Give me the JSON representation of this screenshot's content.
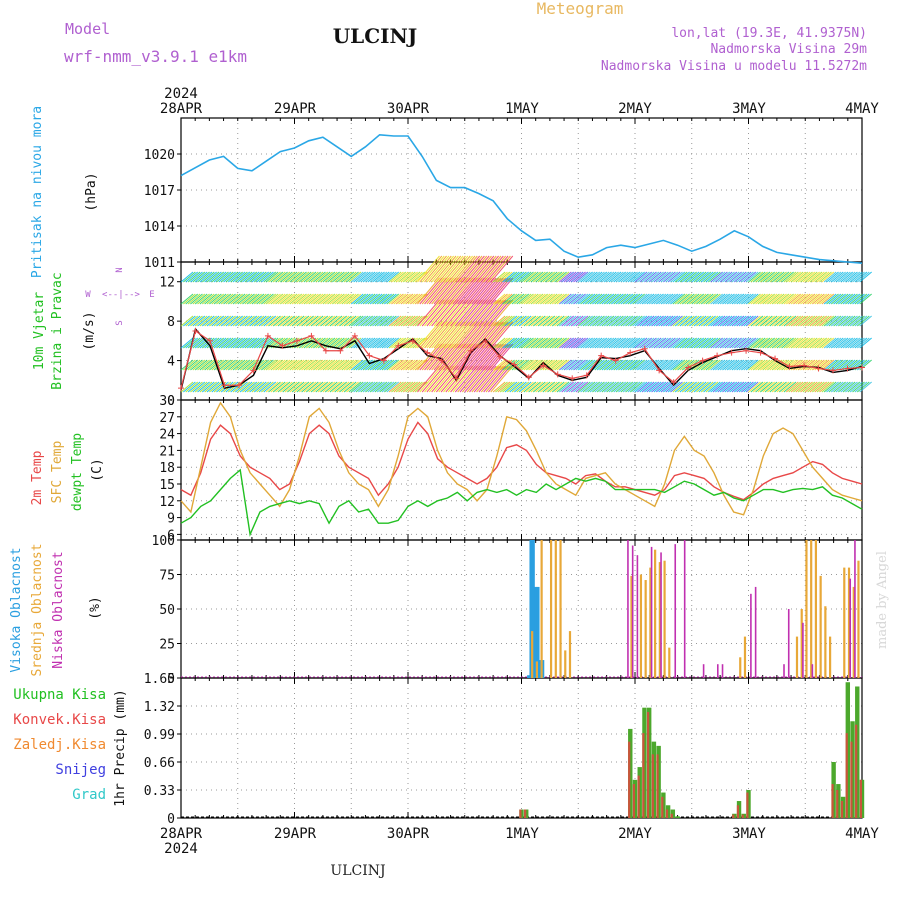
{
  "header": {
    "meteogram_label": "Meteogram",
    "station": "ULCINJ",
    "model_label": "Model",
    "model_name": "wrf-nmm_v3.9.1  e1km",
    "lonlat": "lon,lat (19.3E, 41.9375N)",
    "elevation": "Nadmorska Visina 29m",
    "model_elevation": "Nadmorska Visina u modelu 11.5272m",
    "footer_station": "ULCINJ",
    "credit": "made by Angel"
  },
  "colors": {
    "pressure": "#2aa7e6",
    "temp2m": "#e84848",
    "sfc_temp": "#e0a838",
    "dewpt": "#22c022",
    "high_cloud": "#2a9fe0",
    "mid_cloud": "#e8a838",
    "low_cloud": "#c030b0",
    "total_precip": "#4ca82c",
    "convective_precip": "#e84040",
    "frozen_precip": "#f08a30",
    "snow": "#4040e0",
    "hail": "#30c8c8",
    "title_purple": "#b060d0",
    "meteogram_orange": "#e8b860"
  },
  "chart_data": [
    {
      "type": "line",
      "panel": "pressure",
      "ylabel": "Pritisak na nivou mora",
      "unit": "(hPa)",
      "ylim": [
        1011,
        1023
      ],
      "yticks": [
        1011,
        1014,
        1017,
        1020
      ],
      "x_year": "2024",
      "x_tick_labels": [
        "28APR",
        "29APR",
        "30APR",
        "1MAY",
        "2MAY",
        "3MAY",
        "4MAY"
      ],
      "x_hours": [
        0,
        6,
        9,
        12,
        15,
        18,
        21,
        24,
        27,
        30,
        33,
        36,
        39,
        42,
        45,
        48,
        51,
        54,
        57,
        60,
        63,
        66,
        69,
        72,
        75,
        78,
        81,
        84,
        87,
        90,
        93,
        96,
        99,
        102,
        105,
        108,
        111,
        114,
        117,
        120,
        123,
        126,
        129,
        132,
        135,
        138,
        141,
        144
      ],
      "series": [
        {
          "values": [
            1018.2,
            1019.5,
            1019.8,
            1018.8,
            1018.6,
            1019.4,
            1020.2,
            1020.5,
            1021.1,
            1021.4,
            1020.6,
            1019.8,
            1020.6,
            1021.6,
            1021.5,
            1021.5,
            1019.8,
            1017.8,
            1017.2,
            1017.2,
            1016.7,
            1016.1,
            1014.6,
            1013.6,
            1012.8,
            1012.9,
            1011.9,
            1011.4,
            1011.6,
            1012.2,
            1012.4,
            1012.2,
            1012.5,
            1012.8,
            1012.4,
            1011.9,
            1012.3,
            1012.9,
            1013.6,
            1013.1,
            1012.3,
            1011.8,
            1011.6,
            1011.4,
            1011.2,
            1011.1,
            1011.0,
            1010.9
          ]
        }
      ]
    },
    {
      "type": "line",
      "panel": "wind",
      "ylabel": "10m Vjetar Brzina i Pravac",
      "unit": "(m/s)",
      "ylim": [
        0,
        14
      ],
      "yticks": [
        0,
        4,
        8,
        12
      ],
      "direction_labels": [
        "N",
        "W",
        "E",
        "S"
      ],
      "series": [
        {
          "values": [
            1.0,
            7.2,
            5.5,
            1.2,
            1.5,
            2.5,
            5.5,
            5.3,
            5.5,
            6.0,
            5.5,
            5.2,
            6.0,
            3.7,
            4.2,
            5.2,
            6.2,
            4.5,
            4.2,
            2.0,
            4.8,
            6.2,
            4.5,
            3.4,
            2.2,
            3.8,
            2.5,
            2.0,
            2.3,
            4.3,
            4.2,
            4.5,
            5.0,
            3.2,
            1.5,
            3.0,
            3.8,
            4.4,
            5.0,
            5.2,
            5.0,
            4.0,
            3.2,
            3.4,
            3.3,
            2.8,
            3.0,
            3.4
          ]
        },
        {
          "values": [
            1.2,
            7.0,
            6.0,
            1.5,
            1.5,
            3.0,
            6.5,
            5.5,
            6.0,
            6.5,
            5.0,
            5.0,
            6.5,
            4.5,
            4.0,
            5.5,
            6.0,
            4.8,
            4.0,
            2.2,
            5.0,
            6.0,
            4.4,
            3.6,
            2.3,
            3.5,
            2.6,
            2.2,
            2.5,
            4.5,
            4.0,
            4.8,
            5.2,
            3.0,
            1.8,
            3.3,
            4.0,
            4.5,
            4.8,
            5.0,
            4.8,
            4.2,
            3.4,
            3.5,
            3.2,
            3.0,
            3.2,
            3.3
          ]
        }
      ]
    },
    {
      "type": "line",
      "panel": "temperature",
      "ylabel": "2m Temp / SFC Temp / dewpt Temp",
      "unit": "(C)",
      "ylim": [
        5,
        30
      ],
      "yticks": [
        6,
        9,
        12,
        15,
        18,
        21,
        24,
        27,
        30
      ],
      "series": [
        {
          "name": "2m Temp",
          "values": [
            14,
            13,
            17,
            23,
            25.5,
            24,
            20,
            18,
            17,
            16,
            14,
            15,
            19,
            24,
            25.5,
            24,
            20,
            18,
            17,
            16,
            13,
            15,
            18,
            23,
            26,
            24,
            19.5,
            18,
            17,
            16,
            15,
            16,
            18,
            21.5,
            22,
            21,
            18.5,
            17,
            16.5,
            16,
            15,
            16.5,
            16.8,
            15.5,
            14.5,
            14.5,
            14,
            13.5,
            13,
            14,
            16.5,
            17,
            16.5,
            16,
            14.5,
            13.5,
            12.8,
            12.2,
            13.5,
            15,
            16,
            16.5,
            17,
            18,
            19,
            18.5,
            17,
            16,
            15.5,
            15
          ]
        },
        {
          "name": "SFC Temp",
          "values": [
            12,
            10,
            18,
            26,
            29.5,
            27,
            21,
            17,
            15,
            13,
            11,
            14,
            20,
            27,
            28.5,
            26,
            21,
            17,
            15,
            14,
            11,
            14,
            20,
            27,
            28.5,
            27,
            21,
            17,
            15,
            14,
            12,
            14,
            20,
            27,
            26.5,
            24.5,
            21,
            17,
            15,
            14,
            13,
            16,
            16.5,
            17,
            15,
            14,
            13,
            12,
            11,
            15,
            21,
            23.5,
            21,
            20,
            17,
            13,
            10,
            9.5,
            14,
            20,
            24,
            25,
            24,
            21,
            18,
            16,
            14,
            13,
            12.5,
            12
          ]
        },
        {
          "name": "dewpt Temp",
          "values": [
            8,
            9,
            11,
            12,
            14,
            16,
            17.5,
            6,
            10,
            11,
            11.5,
            12,
            11.5,
            12,
            11.5,
            8,
            11,
            12,
            10,
            10.5,
            8,
            8,
            8.5,
            11,
            12,
            11,
            12,
            12.5,
            13.5,
            12,
            13.5,
            14,
            13.5,
            14,
            13,
            14,
            13.5,
            15,
            14,
            15,
            16,
            15.5,
            16,
            15.5,
            14,
            14,
            14,
            14,
            14,
            13.5,
            14.5,
            15.5,
            15,
            14,
            13,
            13.5,
            12.5,
            12,
            13,
            14,
            14,
            13.5,
            14,
            14.2,
            14,
            14.5,
            13,
            12.5,
            11.5,
            10.5
          ]
        }
      ]
    },
    {
      "type": "bar",
      "panel": "clouds",
      "ylabel": "Visoka Oblacnost / Srednja Oblacnost / Niska Oblacnost",
      "unit": "(%)",
      "ylim": [
        0,
        100
      ],
      "yticks": [
        0,
        25,
        50,
        75,
        100
      ],
      "series": [
        {
          "name": "Visoka Oblacnost",
          "hours": [
            73.5,
            74,
            74.5,
            75,
            75.5,
            76,
            76.5,
            77
          ],
          "values": [
            2,
            100,
            100,
            66,
            66,
            13,
            13,
            0
          ]
        },
        {
          "name": "Srednja Oblacnost",
          "hours": [
            73,
            74,
            75,
            76,
            77,
            78,
            79,
            80,
            81,
            82,
            95,
            96,
            97,
            98,
            99,
            100,
            101,
            102,
            103,
            104,
            105,
            108,
            112,
            118,
            119,
            130,
            131,
            132,
            133,
            134,
            135,
            136,
            137,
            140,
            141,
            142,
            143
          ],
          "values": [
            0,
            34,
            12,
            100,
            0,
            100,
            100,
            100,
            20,
            34,
            74,
            0,
            75,
            71,
            80,
            93,
            84,
            85,
            22,
            0,
            0,
            0,
            0,
            15,
            30,
            30,
            50,
            100,
            100,
            100,
            74,
            52,
            30,
            80,
            80,
            66,
            85
          ]
        },
        {
          "name": "Niska Oblacnost",
          "hours": [
            94,
            95,
            96,
            99,
            101,
            104,
            106,
            110,
            113,
            114,
            120,
            121,
            127,
            128,
            131,
            133,
            141,
            142
          ],
          "values": [
            100,
            96,
            89,
            95,
            91,
            97,
            100,
            10,
            10,
            10,
            61,
            66,
            10,
            50,
            40,
            10,
            72,
            100
          ],
          "extra_hours": [
            144
          ],
          "extra_values": [
            0
          ]
        }
      ]
    },
    {
      "type": "bar",
      "panel": "precipitation",
      "ylabel": "1hr Precip",
      "unit": "(mm)",
      "ylim": [
        0,
        1.65
      ],
      "yticks": [
        0,
        0.33,
        0.66,
        0.99,
        1.32,
        1.65
      ],
      "series": [
        {
          "name": "Ukupna Kisa",
          "hours": [
            72,
            73,
            95,
            96,
            97,
            98,
            99,
            100,
            101,
            102,
            103,
            104,
            105,
            117,
            118,
            119,
            120,
            138,
            139,
            140,
            141,
            142,
            143,
            144
          ],
          "values": [
            0.1,
            0.1,
            1.05,
            0.45,
            0.6,
            1.3,
            1.3,
            0.9,
            0.85,
            0.3,
            0.15,
            0.1,
            0.02,
            0.05,
            0.2,
            0.05,
            0.33,
            0.66,
            0.4,
            0.25,
            1.6,
            1.14,
            1.55,
            0.45
          ]
        },
        {
          "name": "Konvek.Kisa",
          "hours": [
            72,
            73,
            95,
            96,
            97,
            98,
            99,
            100,
            101,
            102,
            103,
            104,
            117,
            118,
            119,
            120,
            138,
            139,
            140,
            141,
            142,
            143,
            144
          ],
          "values": [
            0.1,
            0.1,
            0.9,
            0.4,
            0.5,
            1.0,
            1.25,
            0.75,
            0.75,
            0.25,
            0.1,
            0.05,
            0.04,
            0.15,
            0.04,
            0.3,
            0.4,
            0.33,
            0.2,
            1.0,
            0.9,
            1.1,
            0.45
          ]
        },
        {
          "name": "Zaledj.Kisa",
          "hours": [],
          "values": []
        },
        {
          "name": "Snijeg",
          "hours": [],
          "values": []
        },
        {
          "name": "Grad",
          "hours": [],
          "values": []
        }
      ]
    }
  ]
}
